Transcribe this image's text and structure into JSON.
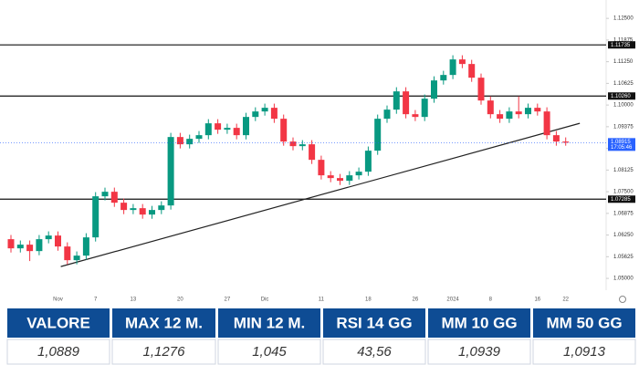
{
  "chart_data": {
    "type": "candlestick",
    "categories": [
      null,
      null,
      null,
      null,
      null,
      "Nov",
      null,
      null,
      null,
      "7",
      null,
      null,
      null,
      "13",
      null,
      null,
      null,
      null,
      "20",
      null,
      null,
      null,
      null,
      "27",
      null,
      null,
      null,
      "Dic",
      null,
      null,
      null,
      null,
      null,
      "11",
      null,
      null,
      null,
      null,
      "18",
      null,
      null,
      null,
      null,
      "26",
      null,
      null,
      null,
      "2024",
      null,
      null,
      null,
      "8",
      null,
      null,
      null,
      null,
      "16",
      null,
      null,
      "22"
    ],
    "open": [
      1.06131,
      1.05867,
      1.05973,
      1.05788,
      1.06131,
      1.06236,
      1.0592,
      1.05525,
      1.05657,
      1.06183,
      1.07368,
      1.07499,
      1.07183,
      1.06973,
      1.07025,
      1.06841,
      1.06973,
      1.07104,
      1.09078,
      1.08868,
      1.09026,
      1.09131,
      1.09473,
      1.09289,
      1.09342,
      1.09131,
      1.09657,
      1.09815,
      1.09921,
      1.09605,
      1.08947,
      1.08815,
      1.08868,
      1.0842,
      1.07973,
      1.07894,
      1.07815,
      1.07973,
      1.08078,
      1.08684,
      1.09605,
      1.09868,
      1.10394,
      1.09736,
      1.09657,
      1.10184,
      1.1071,
      1.10868,
      1.11316,
      1.11184,
      1.10789,
      1.10131,
      1.09736,
      1.09605,
      1.09815,
      1.09736,
      1.09921,
      1.09815,
      1.09131,
      1.08947
    ],
    "high": [
      1.06251,
      1.06093,
      1.06093,
      1.06251,
      1.06356,
      1.06356,
      1.0604,
      1.05777,
      1.06303,
      1.07488,
      1.07619,
      1.07619,
      1.07303,
      1.07145,
      1.07145,
      1.07093,
      1.07224,
      1.09198,
      1.09198,
      1.09146,
      1.09251,
      1.09593,
      1.09593,
      1.09462,
      1.09462,
      1.09777,
      1.09935,
      1.10041,
      1.10041,
      1.09725,
      1.09067,
      1.08988,
      1.08988,
      1.0854,
      1.08093,
      1.08014,
      1.08093,
      1.08198,
      1.08804,
      1.09725,
      1.09988,
      1.10514,
      1.10514,
      1.09856,
      1.10304,
      1.1083,
      1.10988,
      1.11436,
      1.11436,
      1.11304,
      1.10909,
      1.10251,
      1.09856,
      1.09935,
      1.10251,
      1.10041,
      1.10041,
      1.09935,
      1.09251,
      1.09067
    ],
    "low": [
      1.05747,
      1.05747,
      1.055,
      1.05668,
      1.06011,
      1.058,
      1.05405,
      1.05405,
      1.05537,
      1.06063,
      1.07248,
      1.07063,
      1.06853,
      1.06853,
      1.06721,
      1.06721,
      1.06853,
      1.06984,
      1.08748,
      1.08748,
      1.08906,
      1.09011,
      1.09169,
      1.09169,
      1.09011,
      1.09011,
      1.09537,
      1.09695,
      1.09485,
      1.08827,
      1.08695,
      1.08695,
      1.083,
      1.07853,
      1.07774,
      1.07695,
      1.07695,
      1.07853,
      1.07958,
      1.08564,
      1.09485,
      1.09748,
      1.09616,
      1.09537,
      1.09537,
      1.10064,
      1.1059,
      1.10748,
      1.11064,
      1.10669,
      1.10011,
      1.09616,
      1.09485,
      1.09485,
      1.09616,
      1.09616,
      1.09695,
      1.09011,
      1.08827,
      1.08827
    ],
    "close": [
      1.05867,
      1.05973,
      1.05788,
      1.06131,
      1.06236,
      1.0592,
      1.05525,
      1.05657,
      1.06183,
      1.07368,
      1.07499,
      1.07183,
      1.06973,
      1.07025,
      1.06841,
      1.06973,
      1.07104,
      1.09078,
      1.08868,
      1.09026,
      1.09131,
      1.09473,
      1.09289,
      1.09342,
      1.09131,
      1.09657,
      1.09815,
      1.09921,
      1.09605,
      1.08947,
      1.08815,
      1.08868,
      1.0842,
      1.07973,
      1.07894,
      1.07815,
      1.07973,
      1.08078,
      1.08684,
      1.09605,
      1.09868,
      1.10394,
      1.09736,
      1.09657,
      1.10184,
      1.1071,
      1.10868,
      1.11316,
      1.11184,
      1.10789,
      1.10131,
      1.09736,
      1.09605,
      1.09815,
      1.09736,
      1.09921,
      1.09815,
      1.09131,
      1.08947,
      1.08915
    ],
    "up_color": "#089981",
    "down_color": "#f23645",
    "ylim": [
      1.0466,
      1.1303
    ],
    "yticks": [
      {
        "value": 1.125,
        "label": "1.12500"
      },
      1.11875,
      {
        "value": 1.1125,
        "label": "1.11250"
      },
      1.10625,
      {
        "value": 1.1,
        "label": "1.10000"
      },
      1.09375,
      {
        "value": 1.0875,
        "label": "1.08750"
      },
      1.08125,
      {
        "value": 1.075,
        "label": "1.07500"
      },
      1.06875,
      {
        "value": 1.0625,
        "label": "1.06250"
      },
      1.05625,
      {
        "value": 1.05,
        "label": "1.05000"
      }
    ],
    "levels": [
      1.11735,
      {
        "value": 1.1026,
        "label": "1.10260"
      },
      1.07285
    ],
    "trendline": {
      "from": {
        "index": 5.3,
        "value": 1.05341
      },
      "to": {
        "index": 60.5,
        "value": 1.09473
      }
    },
    "current_price": {
      "value": 1.08915,
      "label": "1.08915",
      "countdown": "17:05:46"
    }
  },
  "table": {
    "headers": [
      "VALORE",
      "MAX 12 M.",
      "MIN 12 M.",
      "RSI 14 GG",
      "MM 10 GG",
      "MM 50 GG"
    ],
    "rows": [
      [
        "1,0889",
        "1,1276",
        "1,045",
        "43,56",
        "1,0939",
        "1,0913"
      ]
    ]
  }
}
